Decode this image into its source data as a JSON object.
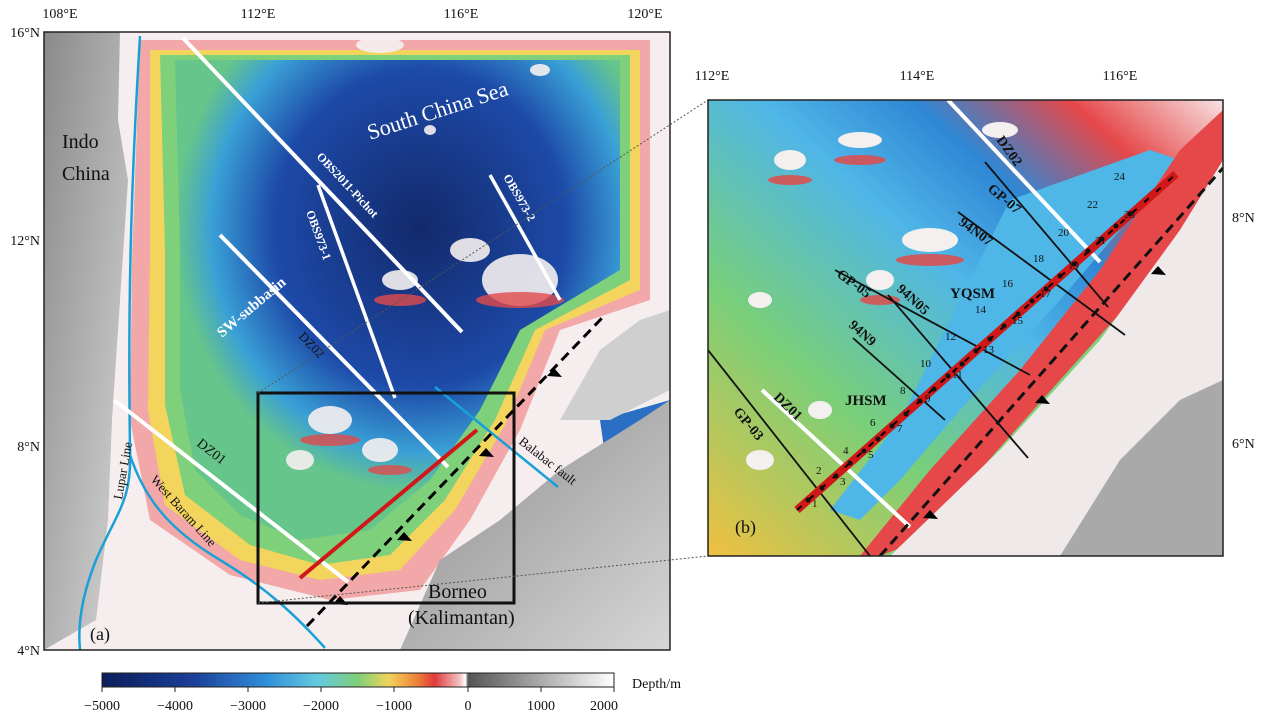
{
  "panel_a": {
    "tag": "(a)",
    "lon_ticks": [
      "108°E",
      "112°E",
      "116°E",
      "120°E"
    ],
    "lat_ticks": [
      "16°N",
      "12°N",
      "8°N",
      "4°N"
    ],
    "labels": {
      "indochina_1": "Indo",
      "indochina_2": "China",
      "sea": "South China Sea",
      "borneo": "Borneo",
      "kalimantan": "(Kalimantan)",
      "sw_subbasin": "SW-subbasin",
      "lupar": "Lupar Line",
      "west_baram": "West Baram Line",
      "balabac": "Balabac fault"
    },
    "profiles": {
      "obs2011": "OBS2011-Pichot",
      "obs973_1": "OBS973-1",
      "obs973_2": "OBS973-2",
      "dz02": "DZ02",
      "dz01": "DZ01"
    }
  },
  "panel_b": {
    "tag": "(b)",
    "lon_ticks": [
      "112°E",
      "114°E",
      "116°E"
    ],
    "lat_ticks": [
      "8°N",
      "6°N"
    ],
    "labels": {
      "yqsm": "YQSM",
      "jhsm": "JHSM",
      "dz02": "DZ02",
      "dz01": "DZ01",
      "gp07": "GP-07",
      "gp05": "GP-05",
      "gp03": "GP-03",
      "n94n07": "94N07",
      "n94n05": "94N05",
      "n94n9": "94N9"
    },
    "stations": [
      "1",
      "2",
      "3",
      "4",
      "5",
      "6",
      "7",
      "8",
      "9",
      "10",
      "11",
      "12",
      "13",
      "14",
      "15",
      "16",
      "17",
      "18",
      "19",
      "20",
      "21",
      "22",
      "23",
      "24"
    ]
  },
  "colorbar": {
    "title": "Depth/m",
    "ticks": [
      "−5000",
      "−4000",
      "−3000",
      "−2000",
      "−1000",
      "0",
      "1000",
      "2000"
    ]
  },
  "colors": {
    "deep": "#1a2f6b",
    "mid": "#2b7fd0",
    "shallow": "#6ccf7f",
    "shelf": "#f3d45c",
    "coast": "#e14b4b",
    "land": "#d9d9d9",
    "profile_red": "#d01818",
    "line_blue": "#1aa0d8"
  }
}
